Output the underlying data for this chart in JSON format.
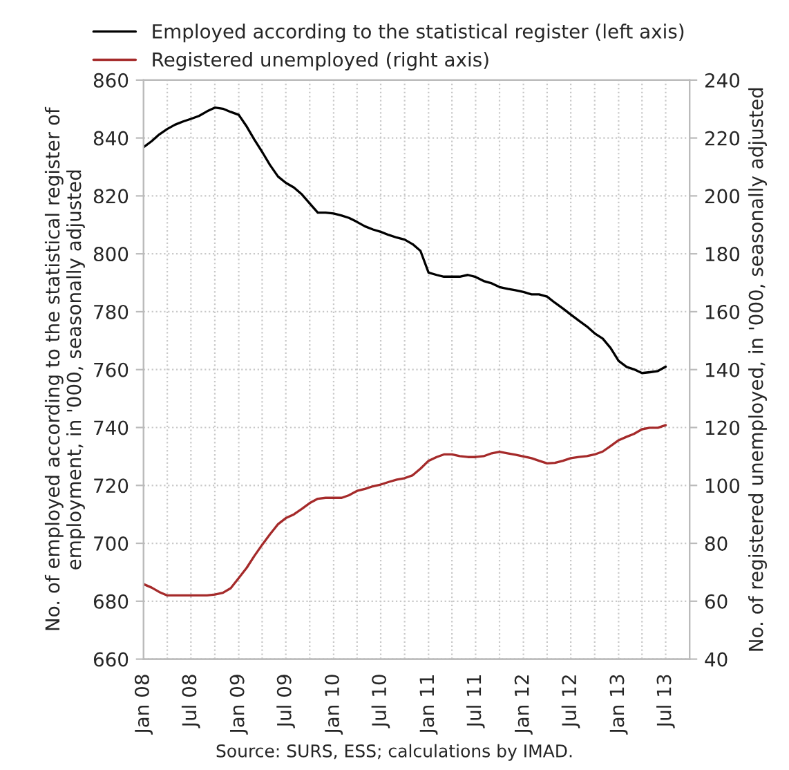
{
  "chart_data": {
    "type": "line",
    "ylabel": "No. of employed according to the statistical register of\nemployment, in '000, seasonally adjusted",
    "y2label": "No. of registered unemployed, in '000, seasonally adjusted",
    "annotations": [
      "Source: SURS, ESS; calculations by IMAD."
    ],
    "x": [
      "2008-01",
      "2008-02",
      "2008-03",
      "2008-04",
      "2008-05",
      "2008-06",
      "2008-07",
      "2008-08",
      "2008-09",
      "2008-10",
      "2008-11",
      "2008-12",
      "2009-01",
      "2009-02",
      "2009-03",
      "2009-04",
      "2009-05",
      "2009-06",
      "2009-07",
      "2009-08",
      "2009-09",
      "2009-10",
      "2009-11",
      "2009-12",
      "2010-01",
      "2010-02",
      "2010-03",
      "2010-04",
      "2010-05",
      "2010-06",
      "2010-07",
      "2010-08",
      "2010-09",
      "2010-10",
      "2010-11",
      "2010-12",
      "2011-01",
      "2011-02",
      "2011-03",
      "2011-04",
      "2011-05",
      "2011-06",
      "2011-07",
      "2011-08",
      "2011-09",
      "2011-10",
      "2011-11",
      "2011-12",
      "2012-01",
      "2012-02",
      "2012-03",
      "2012-04",
      "2012-05",
      "2012-06",
      "2012-07",
      "2012-08",
      "2012-09",
      "2012-10",
      "2012-11",
      "2012-12",
      "2013-01",
      "2013-02",
      "2013-03",
      "2013-04",
      "2013-05",
      "2013-06",
      "2013-07"
    ],
    "series": [
      {
        "name": "Employed according to the statistical register (left axis)",
        "color": "#000000",
        "values": [
          836.8,
          838.9,
          841.2,
          843.1,
          844.6,
          845.7,
          846.6,
          847.6,
          849.2,
          850.5,
          850.1,
          849,
          848,
          843.9,
          839.6,
          835.2,
          830.7,
          826.7,
          824.5,
          822.9,
          820.5,
          817.4,
          814.2,
          814.2,
          813.9,
          813.2,
          812.4,
          811,
          809.5,
          808.4,
          807.6,
          806.5,
          805.6,
          804.9,
          803.3,
          801,
          793.5,
          792.7,
          792.1,
          792.1,
          792.1,
          792.7,
          792,
          790.6,
          789.8,
          788.5,
          787.9,
          787.4,
          786.8,
          786,
          786,
          785.2,
          783.1,
          781.1,
          779,
          776.9,
          774.9,
          772.5,
          770.7,
          767.5,
          763,
          760.9,
          760.1,
          758.8,
          759.1,
          759.5,
          761
        ]
      },
      {
        "name": "Registered unemployed (right axis)",
        "color": "#a52a2a",
        "axis": "y2",
        "values": [
          65.9,
          64.7,
          63.2,
          62,
          62,
          62,
          62,
          62,
          62,
          62.3,
          62.9,
          64.5,
          68,
          71.6,
          75.5,
          79.5,
          83.1,
          86.6,
          88.7,
          90,
          91.9,
          93.9,
          95.4,
          95.7,
          95.7,
          95.7,
          96.6,
          98.1,
          98.8,
          99.7,
          100.3,
          101.2,
          102,
          102.5,
          103.5,
          105.8,
          108.5,
          109.8,
          110.7,
          110.7,
          110.1,
          109.8,
          109.8,
          110.1,
          111.1,
          111.6,
          111.1,
          110.6,
          110,
          109.4,
          108.5,
          107.6,
          107.8,
          108.5,
          109.4,
          109.8,
          110.1,
          110.7,
          111.7,
          113.6,
          115.6,
          116.8,
          117.8,
          119.4,
          119.9,
          119.9,
          120.8
        ]
      }
    ],
    "xlim": [
      "2008-01",
      "2013-10"
    ],
    "xticks": [
      {
        "value": "2008-01",
        "label": "Jan 08"
      },
      {
        "value": "2008-04",
        "label": null
      },
      {
        "value": "2008-07",
        "label": "Jul 08"
      },
      {
        "value": "2008-10",
        "label": null
      },
      {
        "value": "2009-01",
        "label": "Jan 09"
      },
      {
        "value": "2009-04",
        "label": null
      },
      {
        "value": "2009-07",
        "label": "Jul 09"
      },
      {
        "value": "2009-10",
        "label": null
      },
      {
        "value": "2010-01",
        "label": "Jan 10"
      },
      {
        "value": "2010-04",
        "label": null
      },
      {
        "value": "2010-07",
        "label": "Jul 10"
      },
      {
        "value": "2010-10",
        "label": null
      },
      {
        "value": "2011-01",
        "label": "Jan 11"
      },
      {
        "value": "2011-04",
        "label": null
      },
      {
        "value": "2011-07",
        "label": "Jul 11"
      },
      {
        "value": "2011-10",
        "label": null
      },
      {
        "value": "2012-01",
        "label": "Jan 12"
      },
      {
        "value": "2012-04",
        "label": null
      },
      {
        "value": "2012-07",
        "label": "Jul 12"
      },
      {
        "value": "2012-10",
        "label": null
      },
      {
        "value": "2013-01",
        "label": "Jan 13"
      },
      {
        "value": "2013-04",
        "label": null
      },
      {
        "value": "2013-07",
        "label": "Jul 13"
      }
    ],
    "ylim": [
      660,
      860
    ],
    "yticks": [
      660,
      680,
      700,
      720,
      740,
      760,
      780,
      800,
      820,
      840,
      860
    ],
    "y2lim": [
      40,
      240
    ],
    "y2ticks": [
      40,
      60,
      80,
      100,
      120,
      140,
      160,
      180,
      200,
      220,
      240
    ],
    "grid": true,
    "legend": "top",
    "marker": "none",
    "line_style": "solid"
  }
}
